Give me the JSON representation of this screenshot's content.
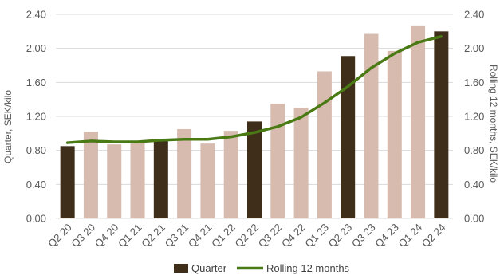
{
  "chart_data": {
    "type": "bar",
    "categories": [
      "Q2 20",
      "Q3 20",
      "Q4 20",
      "Q1 21",
      "Q2 21",
      "Q3 21",
      "Q4 21",
      "Q1 22",
      "Q2 22",
      "Q3 22",
      "Q4 22",
      "Q1 23",
      "Q2 23",
      "Q3 23",
      "Q4 23",
      "Q1 24",
      "Q2 24"
    ],
    "series": [
      {
        "name": "Quarter",
        "kind": "bar",
        "values": [
          0.85,
          1.02,
          0.87,
          0.9,
          0.93,
          1.05,
          0.88,
          1.03,
          1.14,
          1.35,
          1.3,
          1.73,
          1.91,
          2.17,
          1.97,
          2.27,
          2.2
        ],
        "highlight": [
          true,
          false,
          false,
          false,
          true,
          false,
          false,
          false,
          true,
          false,
          false,
          false,
          true,
          false,
          false,
          false,
          true
        ],
        "color_highlight": "#3f2f1a",
        "color_default": "#d7bbaf"
      },
      {
        "name": "Rolling 12 months",
        "kind": "line",
        "values": [
          0.89,
          0.91,
          0.9,
          0.9,
          0.92,
          0.93,
          0.93,
          0.96,
          1.01,
          1.08,
          1.19,
          1.36,
          1.55,
          1.77,
          1.94,
          2.07,
          2.14
        ],
        "color": "#4a7a14"
      }
    ],
    "ylabel_left": "Quarter, SEK/kilo",
    "ylabel_right": "Rolling 12 months, SEK/kilo",
    "ylim": [
      0,
      2.4
    ],
    "yticks": [
      "0.00",
      "0.40",
      "0.80",
      "1.20",
      "1.60",
      "2.00",
      "2.40"
    ],
    "grid": true,
    "legend_position": "bottom-center",
    "legend": [
      {
        "label": "Quarter",
        "symbol": "box",
        "color": "#3f2f1a"
      },
      {
        "label": "Rolling 12 months",
        "symbol": "line",
        "color": "#4a7a14"
      }
    ]
  }
}
